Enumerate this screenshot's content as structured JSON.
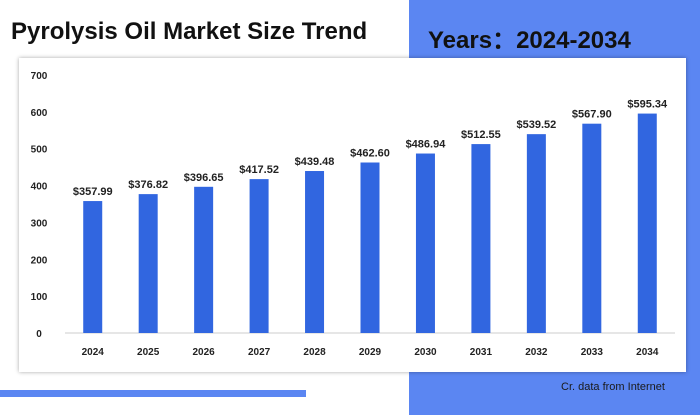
{
  "header": {
    "title": "Pyrolysis Oil Market Size Trend",
    "years_label": "Years：2024-2034"
  },
  "footer": {
    "credit": "Cr. data from Internet"
  },
  "colors": {
    "bar": "#3166e0",
    "accent_panel": "#5b86f2"
  },
  "chart_data": {
    "type": "bar",
    "title": "",
    "xlabel": "",
    "ylabel": "",
    "categories": [
      "2024",
      "2025",
      "2026",
      "2027",
      "2028",
      "2029",
      "2030",
      "2031",
      "2032",
      "2033",
      "2034"
    ],
    "values": [
      357.99,
      376.82,
      396.65,
      417.52,
      439.48,
      462.6,
      486.94,
      512.55,
      539.52,
      567.9,
      595.34
    ],
    "data_labels": [
      "$357.99",
      "$376.82",
      "$396.65",
      "$417.52",
      "$439.48",
      "$462.60",
      "$486.94",
      "$512.55",
      "$539.52",
      "$567.90",
      "$595.34"
    ],
    "yticks": [
      0,
      100,
      200,
      300,
      400,
      500,
      600,
      700
    ],
    "ylim": [
      0,
      700
    ],
    "grid": false,
    "legend": "none"
  }
}
